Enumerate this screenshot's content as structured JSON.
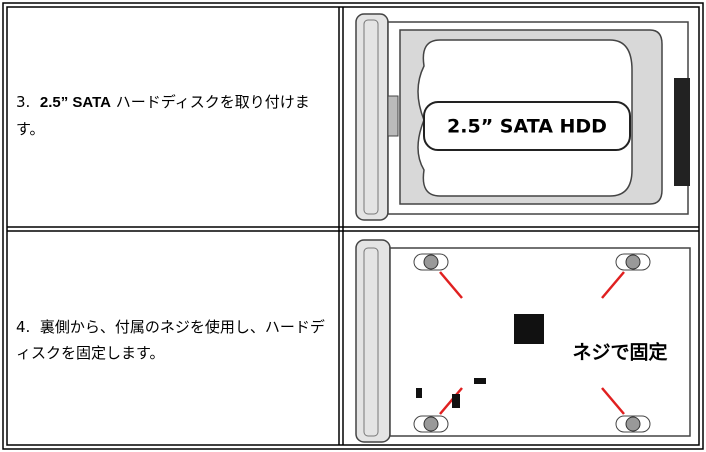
{
  "table": {
    "rows": [
      {
        "number": "3.",
        "text_bold": "2.5” SATA",
        "text": "ハードディスクを取り付けます。",
        "image_label": "2.5” SATA HDD"
      },
      {
        "number": "4.",
        "text": "裏側から、付属のネジを使用し、ハードディスクを固定します。",
        "image_label": "ネジで固定"
      }
    ]
  }
}
